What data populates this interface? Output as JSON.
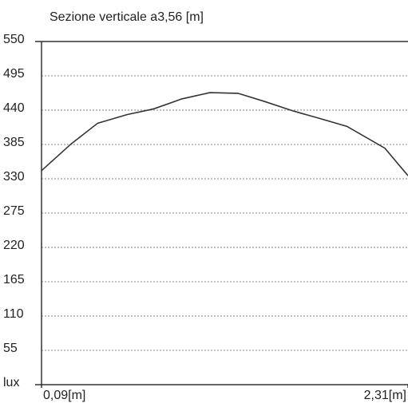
{
  "chart_data": {
    "type": "line",
    "title": "Sezione verticale a3,56 [m]",
    "x": [
      0.09,
      0.27,
      0.43,
      0.61,
      0.77,
      0.94,
      1.11,
      1.28,
      1.44,
      1.61,
      1.77,
      1.94,
      2.17,
      2.31
    ],
    "series": [
      {
        "name": "Sezione",
        "color": "#333333",
        "values": [
          343,
          386,
          419,
          433,
          442,
          458,
          468,
          467,
          454,
          439,
          427,
          414,
          379,
          335
        ]
      }
    ],
    "xlim": [
      0.09,
      2.31
    ],
    "xticks": [
      {
        "value": 0.09,
        "label": "0,09[m]"
      },
      {
        "value": 2.31,
        "label": "2,31[m]"
      }
    ],
    "ylim": [
      0,
      550
    ],
    "yticks": [
      {
        "value": 0,
        "label": "lux"
      },
      55,
      110,
      165,
      220,
      275,
      330,
      385,
      440,
      495,
      550
    ],
    "grid": true
  }
}
